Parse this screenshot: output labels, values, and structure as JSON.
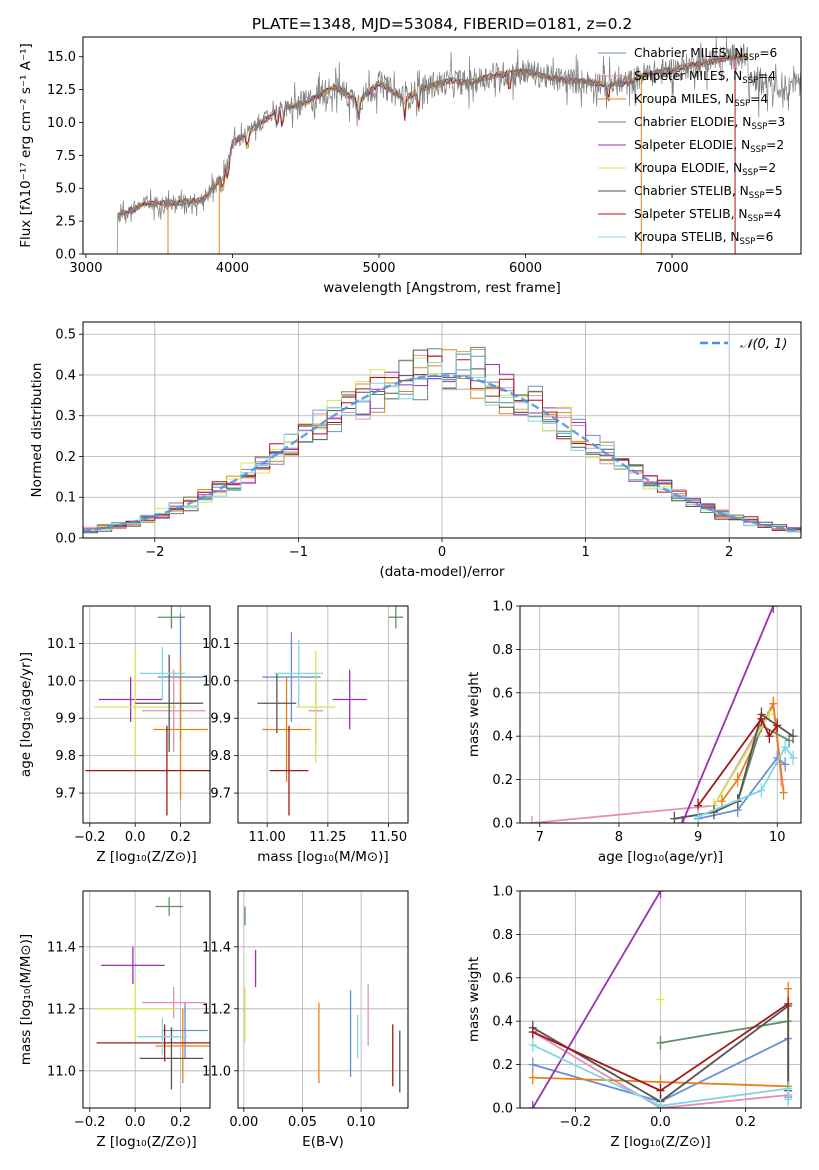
{
  "figure_title": "PLATE=1348, MJD=53084, FIBERID=0181, z=0.2",
  "model_colors": [
    "#1f77b4",
    "#e377c2",
    "#ff7f0e",
    "#2ca02c",
    "#9467bd",
    "#dbdb8d",
    "#7f7f7f",
    "#d62728",
    "#17becf"
  ],
  "model_colors_render": [
    "#6a8fd3",
    "#e58fb8",
    "#e6821e",
    "#5f8f6a",
    "#9b30b3",
    "#d9e35a",
    "#555555",
    "#a51818",
    "#7fd7e6"
  ],
  "chart_data": [
    {
      "id": "spectrum",
      "type": "line",
      "title": "",
      "xlabel": "wavelength [Angstrom, rest frame]",
      "ylabel": "Flux [fλ10⁻¹⁷ erg cm⁻² s⁻¹ A⁻¹]",
      "xlim": [
        2980,
        7880
      ],
      "ylim": [
        0,
        16.5
      ],
      "xticks": [
        3000,
        4000,
        5000,
        6000,
        7000
      ],
      "yticks": [
        0.0,
        2.5,
        5.0,
        7.5,
        10.0,
        12.5,
        15.0
      ],
      "grid": false,
      "legend_position": "upper-right",
      "legend": [
        {
          "label": "Chabrier MILES, N",
          "sub": "SSP",
          "tail": "=6"
        },
        {
          "label": "Salpeter MILES, N",
          "sub": "SSP",
          "tail": "=4"
        },
        {
          "label": "Kroupa MILES, N",
          "sub": "SSP",
          "tail": "=4"
        },
        {
          "label": "Chabrier ELODIE, N",
          "sub": "SSP",
          "tail": "=3"
        },
        {
          "label": "Salpeter ELODIE, N",
          "sub": "SSP",
          "tail": "=2"
        },
        {
          "label": "Kroupa ELODIE, N",
          "sub": "SSP",
          "tail": "=2"
        },
        {
          "label": "Chabrier STELIB, N",
          "sub": "SSP",
          "tail": "=5"
        },
        {
          "label": "Salpeter STELIB, N",
          "sub": "SSP",
          "tail": "=4"
        },
        {
          "label": "Kroupa STELIB, N",
          "sub": "SSP",
          "tail": "=6"
        }
      ],
      "data_envelope": {
        "x": [
          3200,
          3220,
          3400,
          3600,
          3800,
          3950,
          4000,
          4150,
          4300,
          4500,
          4700,
          4860,
          5000,
          5175,
          5300,
          5500,
          5600,
          5800,
          6000,
          6200,
          6400,
          6563,
          6700,
          6800,
          7000,
          7200,
          7400,
          7500
        ],
        "y": [
          0.0,
          2.9,
          3.8,
          3.9,
          4.1,
          6.2,
          8.4,
          9.6,
          10.9,
          11.5,
          12.7,
          11.6,
          13.0,
          11.8,
          12.6,
          13.2,
          13.0,
          13.6,
          13.9,
          13.3,
          13.1,
          12.9,
          13.0,
          13.6,
          14.0,
          14.5,
          15.0,
          15.0
        ]
      }
    },
    {
      "id": "residuals",
      "type": "line",
      "title": "",
      "xlabel": "(data-model)/error",
      "ylabel": "Normed distribution",
      "xlim": [
        -2.5,
        2.5
      ],
      "ylim": [
        0,
        0.53
      ],
      "xticks": [
        -2,
        -1,
        0,
        1,
        2
      ],
      "yticks": [
        0.0,
        0.1,
        0.2,
        0.3,
        0.4,
        0.5
      ],
      "grid": true,
      "legend_position": "upper-right",
      "legend": [
        "𝒩(0, 1)"
      ],
      "gaussian": {
        "mean": 0,
        "sigma": 1
      },
      "bin_width": 0.1
    },
    {
      "id": "age_vs_Z",
      "type": "scatter",
      "xlabel": "Z [log₁₀(Z/Z⊙)]",
      "ylabel": "age  [log₁₀(age/yr)]",
      "xlim": [
        -0.23,
        0.33
      ],
      "ylim": [
        9.62,
        10.2
      ],
      "xticks": [
        -0.2,
        0.0,
        0.2
      ],
      "yticks": [
        9.7,
        9.8,
        9.9,
        10.0,
        10.1
      ],
      "grid": true,
      "points": [
        {
          "m": 0,
          "x": 0.2,
          "xerr": 0.1,
          "y": 10.01,
          "yerr": 0.17
        },
        {
          "m": 1,
          "x": 0.17,
          "xerr": 0.14,
          "y": 9.92,
          "yerr": 0.11
        },
        {
          "m": 2,
          "x": 0.2,
          "xerr": 0.12,
          "y": 9.87,
          "yerr": 0.19
        },
        {
          "m": 3,
          "x": 0.16,
          "xerr": 0.06,
          "y": 10.17,
          "yerr": 0.03
        },
        {
          "m": 4,
          "x": -0.02,
          "xerr": 0.14,
          "y": 9.95,
          "yerr": 0.06
        },
        {
          "m": 5,
          "x": 0.0,
          "xerr": 0.18,
          "y": 9.93,
          "yerr": 0.15
        },
        {
          "m": 6,
          "x": 0.15,
          "xerr": 0.15,
          "y": 9.94,
          "yerr": 0.13
        },
        {
          "m": 7,
          "x": 0.14,
          "xerr": 0.36,
          "y": 9.76,
          "yerr": 0.12
        },
        {
          "m": 8,
          "x": 0.12,
          "xerr": 0.1,
          "y": 10.02,
          "yerr": 0.07
        }
      ]
    },
    {
      "id": "age_vs_mass",
      "type": "scatter",
      "xlabel": "mass [log₁₀(M/M⊙)]",
      "ylabel": "",
      "xlim": [
        10.88,
        11.58
      ],
      "ylim": [
        9.62,
        10.2
      ],
      "xticks": [
        11.0,
        11.25,
        11.5
      ],
      "yticks": [
        9.7,
        9.8,
        9.9,
        10.0,
        10.1
      ],
      "grid": true,
      "points": [
        {
          "m": 0,
          "x": 11.1,
          "xerr": 0.12,
          "y": 10.01,
          "yerr": 0.12
        },
        {
          "m": 1,
          "x": 11.2,
          "xerr": 0.03,
          "y": 9.92,
          "yerr": 0.09
        },
        {
          "m": 2,
          "x": 11.08,
          "xerr": 0.1,
          "y": 9.87,
          "yerr": 0.14
        },
        {
          "m": 3,
          "x": 11.53,
          "xerr": 0.03,
          "y": 10.17,
          "yerr": 0.03
        },
        {
          "m": 4,
          "x": 11.34,
          "xerr": 0.07,
          "y": 9.95,
          "yerr": 0.08
        },
        {
          "m": 5,
          "x": 11.2,
          "xerr": 0.08,
          "y": 9.93,
          "yerr": 0.15
        },
        {
          "m": 6,
          "x": 11.04,
          "xerr": 0.08,
          "y": 9.94,
          "yerr": 0.08
        },
        {
          "m": 7,
          "x": 11.09,
          "xerr": 0.08,
          "y": 9.76,
          "yerr": 0.12
        },
        {
          "m": 8,
          "x": 11.13,
          "xerr": 0.1,
          "y": 10.02,
          "yerr": 0.09
        }
      ]
    },
    {
      "id": "weight_vs_age",
      "type": "line",
      "xlabel": "age  [log₁₀(age/yr)]",
      "ylabel": "mass weight",
      "xlim": [
        6.75,
        10.3
      ],
      "ylim": [
        0,
        1.0
      ],
      "xticks": [
        7,
        8,
        9,
        10
      ],
      "yticks": [
        0.0,
        0.2,
        0.4,
        0.6,
        0.8,
        1.0
      ],
      "grid": true,
      "series": [
        {
          "m": 0,
          "x": [
            9.0,
            9.5,
            10.0,
            10.1
          ],
          "y": [
            0.02,
            0.06,
            0.3,
            0.27
          ]
        },
        {
          "m": 1,
          "x": [
            6.9,
            9.2,
            9.95,
            10.05
          ],
          "y": [
            0.0,
            0.08,
            0.55,
            0.2
          ]
        },
        {
          "m": 2,
          "x": [
            9.3,
            9.5,
            9.95,
            10.08
          ],
          "y": [
            0.1,
            0.2,
            0.55,
            0.14
          ]
        },
        {
          "m": 3,
          "x": [
            9.5,
            9.8,
            10.15
          ],
          "y": [
            0.1,
            0.45,
            0.38
          ]
        },
        {
          "m": 4,
          "x": [
            8.8,
            9.95
          ],
          "y": [
            0.0,
            1.0
          ]
        },
        {
          "m": 5,
          "x": [
            9.2,
            9.9
          ],
          "y": [
            0.08,
            0.5
          ]
        },
        {
          "m": 6,
          "x": [
            8.7,
            9.2,
            9.5,
            9.8,
            10.2
          ],
          "y": [
            0.02,
            0.05,
            0.1,
            0.5,
            0.4
          ]
        },
        {
          "m": 7,
          "x": [
            9.0,
            9.8,
            9.9,
            10.0
          ],
          "y": [
            0.08,
            0.48,
            0.4,
            0.45
          ]
        },
        {
          "m": 8,
          "x": [
            9.0,
            9.8,
            10.1,
            10.2
          ],
          "y": [
            0.03,
            0.15,
            0.35,
            0.3
          ]
        }
      ]
    },
    {
      "id": "mass_vs_Z",
      "type": "scatter",
      "xlabel": "Z [log₁₀(Z/Z⊙)]",
      "ylabel": "mass [log₁₀(M/M⊙)]",
      "xlim": [
        -0.23,
        0.33
      ],
      "ylim": [
        10.88,
        11.58
      ],
      "xticks": [
        -0.2,
        0.0,
        0.2
      ],
      "yticks": [
        11.0,
        11.2,
        11.4
      ],
      "grid": true,
      "points": [
        {
          "m": 0,
          "x": 0.22,
          "xerr": 0.1,
          "y": 11.13,
          "yerr": 0.09
        },
        {
          "m": 1,
          "x": 0.17,
          "xerr": 0.14,
          "y": 11.22,
          "yerr": 0.05
        },
        {
          "m": 2,
          "x": 0.21,
          "xerr": 0.12,
          "y": 11.08,
          "yerr": 0.12
        },
        {
          "m": 3,
          "x": 0.15,
          "xerr": 0.06,
          "y": 11.53,
          "yerr": 0.03
        },
        {
          "m": 4,
          "x": -0.01,
          "xerr": 0.14,
          "y": 11.34,
          "yerr": 0.06
        },
        {
          "m": 5,
          "x": 0.0,
          "xerr": 0.18,
          "y": 11.2,
          "yerr": 0.1
        },
        {
          "m": 6,
          "x": 0.16,
          "xerr": 0.14,
          "y": 11.04,
          "yerr": 0.1
        },
        {
          "m": 7,
          "x": 0.13,
          "xerr": 0.3,
          "y": 11.09,
          "yerr": 0.06
        },
        {
          "m": 8,
          "x": 0.12,
          "xerr": 0.11,
          "y": 11.11,
          "yerr": 0.06
        }
      ]
    },
    {
      "id": "mass_vs_ebv",
      "type": "scatter",
      "xlabel": "E(B-V)",
      "ylabel": "",
      "xlim": [
        -0.005,
        0.14
      ],
      "ylim": [
        10.88,
        11.58
      ],
      "xticks": [
        0.0,
        0.05,
        0.1
      ],
      "yticks": [
        11.0,
        11.2,
        11.4
      ],
      "grid": true,
      "points": [
        {
          "m": 0,
          "x": 0.091,
          "y": 11.12,
          "yerr": 0.14
        },
        {
          "m": 1,
          "x": 0.106,
          "y": 11.18,
          "yerr": 0.1
        },
        {
          "m": 2,
          "x": 0.064,
          "y": 11.09,
          "yerr": 0.13
        },
        {
          "m": 3,
          "x": 0.001,
          "y": 11.5,
          "yerr": 0.03
        },
        {
          "m": 4,
          "x": 0.01,
          "y": 11.33,
          "yerr": 0.06
        },
        {
          "m": 5,
          "x": 0.001,
          "y": 11.18,
          "yerr": 0.09
        },
        {
          "m": 6,
          "x": 0.133,
          "y": 11.03,
          "yerr": 0.1
        },
        {
          "m": 7,
          "x": 0.127,
          "y": 11.05,
          "yerr": 0.1
        },
        {
          "m": 8,
          "x": 0.097,
          "y": 11.11,
          "yerr": 0.07
        }
      ]
    },
    {
      "id": "weight_vs_Z",
      "type": "line",
      "xlabel": "Z [log₁₀(Z/Z⊙)]",
      "ylabel": "mass weight",
      "xlim": [
        -0.33,
        0.33
      ],
      "ylim": [
        0,
        1.0
      ],
      "xticks": [
        -0.2,
        0.0,
        0.2
      ],
      "yticks": [
        0.0,
        0.2,
        0.4,
        0.6,
        0.8,
        1.0
      ],
      "grid": true,
      "series": [
        {
          "m": 0,
          "x": [
            -0.3,
            0.0,
            0.3,
            0.3
          ],
          "y": [
            0.2,
            0.03,
            0.32,
            0.05
          ]
        },
        {
          "m": 1,
          "x": [
            -0.3,
            0.0,
            0.3
          ],
          "y": [
            0.35,
            0.0,
            0.06
          ]
        },
        {
          "m": 2,
          "x": [
            -0.3,
            0.0,
            0.3,
            0.3
          ],
          "y": [
            0.14,
            0.12,
            0.1,
            0.55
          ]
        },
        {
          "m": 3,
          "x": [
            0.0,
            0.3
          ],
          "y": [
            0.3,
            0.4
          ]
        },
        {
          "m": 4,
          "x": [
            -0.3,
            0.0
          ],
          "y": [
            0.0,
            1.0
          ]
        },
        {
          "m": 5,
          "x": [
            0.0
          ],
          "y": [
            0.5
          ]
        },
        {
          "m": 6,
          "x": [
            -0.3,
            0.0,
            0.3,
            0.3
          ],
          "y": [
            0.37,
            0.03,
            0.47,
            0.08
          ]
        },
        {
          "m": 7,
          "x": [
            -0.3,
            0.0,
            0.3
          ],
          "y": [
            0.35,
            0.08,
            0.48
          ]
        },
        {
          "m": 8,
          "x": [
            -0.3,
            0.0,
            0.3,
            0.3
          ],
          "y": [
            0.29,
            0.01,
            0.09,
            0.04
          ]
        }
      ]
    }
  ]
}
